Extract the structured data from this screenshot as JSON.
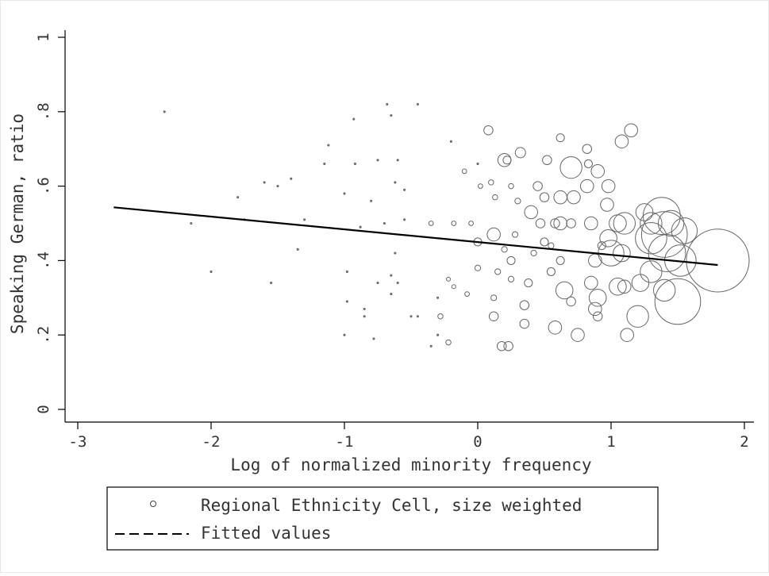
{
  "chart_data": {
    "type": "scatter",
    "title": "",
    "xlabel": "Log of normalized minority frequency",
    "ylabel": "Speaking German, ratio",
    "xlim": [
      -3,
      2
    ],
    "ylim": [
      0,
      1
    ],
    "x_ticks": [
      -3,
      -2,
      -1,
      0,
      1,
      2
    ],
    "x_tick_labels": [
      "-3",
      "-2",
      "-1",
      "0",
      "1",
      "2"
    ],
    "y_ticks": [
      0,
      0.2,
      0.4,
      0.6,
      0.8,
      1
    ],
    "y_tick_labels": [
      "0",
      ".2",
      ".4",
      ".6",
      ".8",
      "1"
    ],
    "grid": false,
    "legend_position": "bottom",
    "series": [
      {
        "name": "Regional Ethnicity Cell, size weighted",
        "kind": "scatter",
        "marker": "hollow-circle",
        "weight_encoding": "marker size",
        "points": [
          {
            "x": -2.35,
            "y": 0.8,
            "w": 0.5
          },
          {
            "x": -0.93,
            "y": 0.78,
            "w": 0.5
          },
          {
            "x": -0.68,
            "y": 0.82,
            "w": 0.5
          },
          {
            "x": -0.45,
            "y": 0.82,
            "w": 0.5
          },
          {
            "x": -0.65,
            "y": 0.79,
            "w": 0.5
          },
          {
            "x": -1.12,
            "y": 0.71,
            "w": 0.5
          },
          {
            "x": -1.15,
            "y": 0.66,
            "w": 0.5
          },
          {
            "x": -0.92,
            "y": 0.66,
            "w": 0.5
          },
          {
            "x": -0.75,
            "y": 0.67,
            "w": 0.5
          },
          {
            "x": -0.6,
            "y": 0.67,
            "w": 0.5
          },
          {
            "x": -0.2,
            "y": 0.72,
            "w": 0.6
          },
          {
            "x": -1.4,
            "y": 0.62,
            "w": 0.5
          },
          {
            "x": -1.6,
            "y": 0.61,
            "w": 0.5
          },
          {
            "x": -1.8,
            "y": 0.57,
            "w": 0.5
          },
          {
            "x": -1.5,
            "y": 0.6,
            "w": 0.5
          },
          {
            "x": -1.0,
            "y": 0.58,
            "w": 0.5
          },
          {
            "x": -0.8,
            "y": 0.56,
            "w": 0.5
          },
          {
            "x": -0.62,
            "y": 0.61,
            "w": 0.5
          },
          {
            "x": -0.55,
            "y": 0.59,
            "w": 0.5
          },
          {
            "x": -0.1,
            "y": 0.64,
            "w": 0.8
          },
          {
            "x": -2.15,
            "y": 0.5,
            "w": 0.5
          },
          {
            "x": -1.75,
            "y": 0.51,
            "w": 0.5
          },
          {
            "x": -1.3,
            "y": 0.51,
            "w": 0.5
          },
          {
            "x": -0.88,
            "y": 0.49,
            "w": 0.5
          },
          {
            "x": -0.7,
            "y": 0.5,
            "w": 0.5
          },
          {
            "x": -0.55,
            "y": 0.51,
            "w": 0.5
          },
          {
            "x": -0.35,
            "y": 0.5,
            "w": 0.8
          },
          {
            "x": -0.18,
            "y": 0.5,
            "w": 0.8
          },
          {
            "x": -0.05,
            "y": 0.5,
            "w": 0.8
          },
          {
            "x": -1.35,
            "y": 0.43,
            "w": 0.5
          },
          {
            "x": -0.62,
            "y": 0.42,
            "w": 0.5
          },
          {
            "x": -2.0,
            "y": 0.37,
            "w": 0.5
          },
          {
            "x": -1.55,
            "y": 0.34,
            "w": 0.5
          },
          {
            "x": -0.98,
            "y": 0.37,
            "w": 0.5
          },
          {
            "x": -0.75,
            "y": 0.34,
            "w": 0.5
          },
          {
            "x": -0.65,
            "y": 0.36,
            "w": 0.5
          },
          {
            "x": -0.6,
            "y": 0.34,
            "w": 0.5
          },
          {
            "x": -0.22,
            "y": 0.35,
            "w": 0.7
          },
          {
            "x": -0.18,
            "y": 0.33,
            "w": 0.7
          },
          {
            "x": -0.08,
            "y": 0.31,
            "w": 0.8
          },
          {
            "x": -0.98,
            "y": 0.29,
            "w": 0.5
          },
          {
            "x": -0.85,
            "y": 0.27,
            "w": 0.5
          },
          {
            "x": -0.65,
            "y": 0.31,
            "w": 0.5
          },
          {
            "x": -0.3,
            "y": 0.3,
            "w": 0.6
          },
          {
            "x": -0.85,
            "y": 0.25,
            "w": 0.6
          },
          {
            "x": -0.5,
            "y": 0.25,
            "w": 0.6
          },
          {
            "x": -0.45,
            "y": 0.25,
            "w": 0.6
          },
          {
            "x": -0.28,
            "y": 0.25,
            "w": 0.9
          },
          {
            "x": -1.0,
            "y": 0.2,
            "w": 0.5
          },
          {
            "x": -0.78,
            "y": 0.19,
            "w": 0.5
          },
          {
            "x": -0.3,
            "y": 0.2,
            "w": 0.6
          },
          {
            "x": -0.35,
            "y": 0.17,
            "w": 0.6
          },
          {
            "x": -0.22,
            "y": 0.18,
            "w": 0.9
          },
          {
            "x": 0.02,
            "y": 0.6,
            "w": 0.8
          },
          {
            "x": 0.0,
            "y": 0.66,
            "w": 0.6
          },
          {
            "x": 0.08,
            "y": 0.75,
            "w": 1.6
          },
          {
            "x": 0.2,
            "y": 0.67,
            "w": 2.3
          },
          {
            "x": 0.22,
            "y": 0.67,
            "w": 1.4
          },
          {
            "x": 0.32,
            "y": 0.69,
            "w": 1.8
          },
          {
            "x": 0.1,
            "y": 0.61,
            "w": 0.9
          },
          {
            "x": 0.25,
            "y": 0.6,
            "w": 0.9
          },
          {
            "x": 0.13,
            "y": 0.57,
            "w": 0.9
          },
          {
            "x": 0.3,
            "y": 0.56,
            "w": 1.0
          },
          {
            "x": 0.4,
            "y": 0.53,
            "w": 2.3
          },
          {
            "x": 0.47,
            "y": 0.5,
            "w": 1.6
          },
          {
            "x": 0.45,
            "y": 0.6,
            "w": 1.6
          },
          {
            "x": 0.5,
            "y": 0.57,
            "w": 1.6
          },
          {
            "x": 0.52,
            "y": 0.67,
            "w": 1.6
          },
          {
            "x": 0.62,
            "y": 0.73,
            "w": 1.4
          },
          {
            "x": 0.7,
            "y": 0.65,
            "w": 3.8
          },
          {
            "x": 0.62,
            "y": 0.57,
            "w": 2.3
          },
          {
            "x": 0.72,
            "y": 0.57,
            "w": 2.3
          },
          {
            "x": 0.58,
            "y": 0.5,
            "w": 1.6
          },
          {
            "x": 0.62,
            "y": 0.5,
            "w": 2.3
          },
          {
            "x": 0.7,
            "y": 0.5,
            "w": 1.6
          },
          {
            "x": 0.82,
            "y": 0.7,
            "w": 1.6
          },
          {
            "x": 0.83,
            "y": 0.66,
            "w": 1.4
          },
          {
            "x": 0.9,
            "y": 0.64,
            "w": 2.3
          },
          {
            "x": 0.82,
            "y": 0.6,
            "w": 2.3
          },
          {
            "x": 0.98,
            "y": 0.6,
            "w": 2.3
          },
          {
            "x": 0.97,
            "y": 0.55,
            "w": 2.3
          },
          {
            "x": 0.85,
            "y": 0.5,
            "w": 2.3
          },
          {
            "x": 1.05,
            "y": 0.5,
            "w": 3.0
          },
          {
            "x": 1.1,
            "y": 0.5,
            "w": 3.8
          },
          {
            "x": 1.08,
            "y": 0.72,
            "w": 2.3
          },
          {
            "x": 1.15,
            "y": 0.75,
            "w": 2.3
          },
          {
            "x": 0.12,
            "y": 0.47,
            "w": 2.3
          },
          {
            "x": 0.28,
            "y": 0.47,
            "w": 1.0
          },
          {
            "x": 0.0,
            "y": 0.45,
            "w": 1.4
          },
          {
            "x": 0.5,
            "y": 0.45,
            "w": 1.4
          },
          {
            "x": 0.55,
            "y": 0.44,
            "w": 1.0
          },
          {
            "x": 0.93,
            "y": 0.44,
            "w": 1.4
          },
          {
            "x": 0.98,
            "y": 0.46,
            "w": 3.0
          },
          {
            "x": 0.2,
            "y": 0.43,
            "w": 1.0
          },
          {
            "x": 0.25,
            "y": 0.4,
            "w": 1.4
          },
          {
            "x": 0.42,
            "y": 0.42,
            "w": 1.0
          },
          {
            "x": 0.62,
            "y": 0.4,
            "w": 1.4
          },
          {
            "x": 0.88,
            "y": 0.4,
            "w": 2.3
          },
          {
            "x": 1.0,
            "y": 0.42,
            "w": 4.5
          },
          {
            "x": 1.08,
            "y": 0.42,
            "w": 3.0
          },
          {
            "x": 0.0,
            "y": 0.38,
            "w": 1.0
          },
          {
            "x": 0.15,
            "y": 0.37,
            "w": 1.0
          },
          {
            "x": 0.25,
            "y": 0.35,
            "w": 1.0
          },
          {
            "x": 0.38,
            "y": 0.34,
            "w": 1.4
          },
          {
            "x": 0.55,
            "y": 0.37,
            "w": 1.4
          },
          {
            "x": 0.65,
            "y": 0.32,
            "w": 3.0
          },
          {
            "x": 0.7,
            "y": 0.29,
            "w": 1.6
          },
          {
            "x": 0.85,
            "y": 0.34,
            "w": 2.3
          },
          {
            "x": 0.9,
            "y": 0.3,
            "w": 3.0
          },
          {
            "x": 0.88,
            "y": 0.27,
            "w": 2.3
          },
          {
            "x": 0.9,
            "y": 0.25,
            "w": 1.6
          },
          {
            "x": 1.05,
            "y": 0.33,
            "w": 3.0
          },
          {
            "x": 1.1,
            "y": 0.33,
            "w": 2.3
          },
          {
            "x": 1.2,
            "y": 0.25,
            "w": 3.8
          },
          {
            "x": 1.12,
            "y": 0.2,
            "w": 2.3
          },
          {
            "x": 0.35,
            "y": 0.28,
            "w": 1.6
          },
          {
            "x": 0.12,
            "y": 0.3,
            "w": 1.0
          },
          {
            "x": 0.12,
            "y": 0.25,
            "w": 1.6
          },
          {
            "x": 0.35,
            "y": 0.23,
            "w": 1.6
          },
          {
            "x": 0.58,
            "y": 0.22,
            "w": 2.3
          },
          {
            "x": 0.75,
            "y": 0.2,
            "w": 2.3
          },
          {
            "x": 0.18,
            "y": 0.17,
            "w": 1.6
          },
          {
            "x": 0.23,
            "y": 0.17,
            "w": 1.6
          },
          {
            "x": 1.25,
            "y": 0.53,
            "w": 3.0
          },
          {
            "x": 1.3,
            "y": 0.5,
            "w": 3.8
          },
          {
            "x": 1.3,
            "y": 0.46,
            "w": 5.5
          },
          {
            "x": 1.38,
            "y": 0.52,
            "w": 6.5
          },
          {
            "x": 1.4,
            "y": 0.47,
            "w": 8.0
          },
          {
            "x": 1.45,
            "y": 0.5,
            "w": 4.5
          },
          {
            "x": 1.55,
            "y": 0.48,
            "w": 4.5
          },
          {
            "x": 1.42,
            "y": 0.42,
            "w": 6.5
          },
          {
            "x": 1.52,
            "y": 0.4,
            "w": 5.5
          },
          {
            "x": 1.3,
            "y": 0.37,
            "w": 3.8
          },
          {
            "x": 1.22,
            "y": 0.34,
            "w": 3.0
          },
          {
            "x": 1.4,
            "y": 0.32,
            "w": 3.8
          },
          {
            "x": 1.5,
            "y": 0.29,
            "w": 8.0
          },
          {
            "x": 1.8,
            "y": 0.4,
            "w": 11.0
          }
        ]
      },
      {
        "name": "Fitted values",
        "kind": "line",
        "x": [
          -2.73,
          1.8
        ],
        "y": [
          0.543,
          0.388
        ]
      }
    ]
  },
  "legend": {
    "items": [
      {
        "label": "Regional Ethnicity Cell, size weighted",
        "symbol": "hollow-circle"
      },
      {
        "label": "Fitted values",
        "symbol": "dashed-line"
      }
    ]
  },
  "colors": {
    "background": "#ffffff",
    "axis": "#000000",
    "text": "#333333",
    "marker": "#666666",
    "fit_line": "#000000",
    "frame": "#e8e8e8"
  }
}
